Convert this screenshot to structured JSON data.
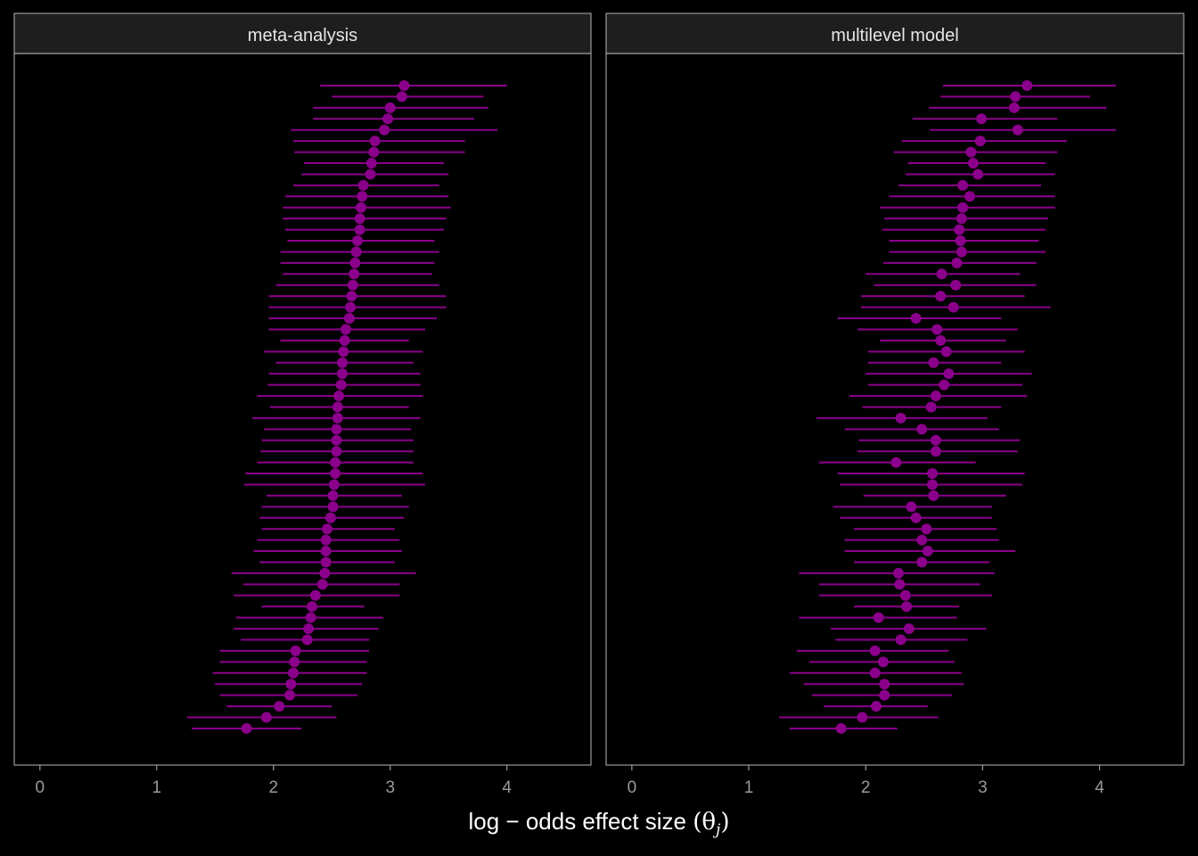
{
  "chart_data": {
    "type": "scatter",
    "subtype": "point-range (forest plot) faceted",
    "colors": {
      "background": "#000000",
      "panel_border": "#9a9a9a",
      "strip_fill": "#1e1e1e",
      "point": "#8b008b",
      "interval": "#8b008b",
      "tick_label": "#9a9a9a",
      "axis_title": "#ffffff"
    },
    "x_axis": {
      "label_prefix": "log − odds effect size ",
      "label_symbol": "(θ",
      "label_subscript": "j",
      "label_suffix": ")",
      "ticks": [
        "0",
        "1",
        "2",
        "3",
        "4"
      ],
      "tick_values": [
        0,
        1,
        2,
        3,
        4
      ],
      "xlim": [
        -0.22,
        4.72
      ]
    },
    "grid": false,
    "n_rows": 59,
    "panels": [
      {
        "title": "meta-analysis",
        "points": [
          {
            "est": 3.12,
            "lo": 2.4,
            "hi": 4.0
          },
          {
            "est": 3.1,
            "lo": 2.5,
            "hi": 3.8
          },
          {
            "est": 3.0,
            "lo": 2.34,
            "hi": 3.84
          },
          {
            "est": 2.98,
            "lo": 2.34,
            "hi": 3.72
          },
          {
            "est": 2.95,
            "lo": 2.15,
            "hi": 3.92
          },
          {
            "est": 2.87,
            "lo": 2.17,
            "hi": 3.64
          },
          {
            "est": 2.86,
            "lo": 2.18,
            "hi": 3.64
          },
          {
            "est": 2.84,
            "lo": 2.26,
            "hi": 3.46
          },
          {
            "est": 2.83,
            "lo": 2.24,
            "hi": 3.5
          },
          {
            "est": 2.77,
            "lo": 2.17,
            "hi": 3.42
          },
          {
            "est": 2.76,
            "lo": 2.1,
            "hi": 3.5
          },
          {
            "est": 2.75,
            "lo": 2.08,
            "hi": 3.52
          },
          {
            "est": 2.74,
            "lo": 2.08,
            "hi": 3.48
          },
          {
            "est": 2.74,
            "lo": 2.1,
            "hi": 3.46
          },
          {
            "est": 2.72,
            "lo": 2.12,
            "hi": 3.38
          },
          {
            "est": 2.71,
            "lo": 2.06,
            "hi": 3.42
          },
          {
            "est": 2.7,
            "lo": 2.06,
            "hi": 3.38
          },
          {
            "est": 2.69,
            "lo": 2.08,
            "hi": 3.36
          },
          {
            "est": 2.68,
            "lo": 2.02,
            "hi": 3.42
          },
          {
            "est": 2.67,
            "lo": 1.96,
            "hi": 3.48
          },
          {
            "est": 2.66,
            "lo": 1.96,
            "hi": 3.48
          },
          {
            "est": 2.65,
            "lo": 1.96,
            "hi": 3.4
          },
          {
            "est": 2.62,
            "lo": 1.96,
            "hi": 3.3
          },
          {
            "est": 2.61,
            "lo": 2.06,
            "hi": 3.16
          },
          {
            "est": 2.6,
            "lo": 1.92,
            "hi": 3.28
          },
          {
            "est": 2.59,
            "lo": 2.02,
            "hi": 3.2
          },
          {
            "est": 2.59,
            "lo": 1.96,
            "hi": 3.26
          },
          {
            "est": 2.58,
            "lo": 1.95,
            "hi": 3.26
          },
          {
            "est": 2.56,
            "lo": 1.86,
            "hi": 3.28
          },
          {
            "est": 2.55,
            "lo": 1.97,
            "hi": 3.16
          },
          {
            "est": 2.55,
            "lo": 1.82,
            "hi": 3.26
          },
          {
            "est": 2.54,
            "lo": 1.92,
            "hi": 3.18
          },
          {
            "est": 2.54,
            "lo": 1.9,
            "hi": 3.2
          },
          {
            "est": 2.54,
            "lo": 1.89,
            "hi": 3.2
          },
          {
            "est": 2.53,
            "lo": 1.86,
            "hi": 3.2
          },
          {
            "est": 2.53,
            "lo": 1.76,
            "hi": 3.28
          },
          {
            "est": 2.52,
            "lo": 1.75,
            "hi": 3.3
          },
          {
            "est": 2.51,
            "lo": 1.94,
            "hi": 3.1
          },
          {
            "est": 2.51,
            "lo": 1.9,
            "hi": 3.16
          },
          {
            "est": 2.49,
            "lo": 1.88,
            "hi": 3.12
          },
          {
            "est": 2.46,
            "lo": 1.9,
            "hi": 3.04
          },
          {
            "est": 2.45,
            "lo": 1.86,
            "hi": 3.08
          },
          {
            "est": 2.45,
            "lo": 1.83,
            "hi": 3.1
          },
          {
            "est": 2.45,
            "lo": 1.88,
            "hi": 3.04
          },
          {
            "est": 2.44,
            "lo": 1.64,
            "hi": 3.22
          },
          {
            "est": 2.42,
            "lo": 1.74,
            "hi": 3.08
          },
          {
            "est": 2.36,
            "lo": 1.66,
            "hi": 3.08
          },
          {
            "est": 2.33,
            "lo": 1.9,
            "hi": 2.78
          },
          {
            "est": 2.32,
            "lo": 1.68,
            "hi": 2.94
          },
          {
            "est": 2.3,
            "lo": 1.66,
            "hi": 2.9
          },
          {
            "est": 2.29,
            "lo": 1.72,
            "hi": 2.82
          },
          {
            "est": 2.19,
            "lo": 1.54,
            "hi": 2.82
          },
          {
            "est": 2.18,
            "lo": 1.54,
            "hi": 2.8
          },
          {
            "est": 2.17,
            "lo": 1.48,
            "hi": 2.8
          },
          {
            "est": 2.15,
            "lo": 1.5,
            "hi": 2.76
          },
          {
            "est": 2.14,
            "lo": 1.54,
            "hi": 2.72
          },
          {
            "est": 2.05,
            "lo": 1.6,
            "hi": 2.5
          },
          {
            "est": 1.94,
            "lo": 1.26,
            "hi": 2.54
          },
          {
            "est": 1.77,
            "lo": 1.3,
            "hi": 2.24
          }
        ]
      },
      {
        "title": "multilevel model",
        "points": [
          {
            "est": 3.38,
            "lo": 2.66,
            "hi": 4.14
          },
          {
            "est": 3.28,
            "lo": 2.64,
            "hi": 3.92
          },
          {
            "est": 3.27,
            "lo": 2.54,
            "hi": 4.06
          },
          {
            "est": 2.99,
            "lo": 2.4,
            "hi": 3.64
          },
          {
            "est": 3.3,
            "lo": 2.55,
            "hi": 4.14
          },
          {
            "est": 2.98,
            "lo": 2.31,
            "hi": 3.72
          },
          {
            "est": 2.9,
            "lo": 2.24,
            "hi": 3.64
          },
          {
            "est": 2.92,
            "lo": 2.36,
            "hi": 3.54
          },
          {
            "est": 2.96,
            "lo": 2.34,
            "hi": 3.62
          },
          {
            "est": 2.83,
            "lo": 2.28,
            "hi": 3.5
          },
          {
            "est": 2.89,
            "lo": 2.2,
            "hi": 3.62
          },
          {
            "est": 2.83,
            "lo": 2.12,
            "hi": 3.62
          },
          {
            "est": 2.82,
            "lo": 2.16,
            "hi": 3.56
          },
          {
            "est": 2.8,
            "lo": 2.14,
            "hi": 3.54
          },
          {
            "est": 2.81,
            "lo": 2.2,
            "hi": 3.48
          },
          {
            "est": 2.82,
            "lo": 2.2,
            "hi": 3.54
          },
          {
            "est": 2.78,
            "lo": 2.15,
            "hi": 3.46
          },
          {
            "est": 2.65,
            "lo": 2.0,
            "hi": 3.32
          },
          {
            "est": 2.77,
            "lo": 2.07,
            "hi": 3.46
          },
          {
            "est": 2.64,
            "lo": 1.96,
            "hi": 3.36
          },
          {
            "est": 2.75,
            "lo": 1.96,
            "hi": 3.58
          },
          {
            "est": 2.43,
            "lo": 1.76,
            "hi": 3.16
          },
          {
            "est": 2.61,
            "lo": 1.93,
            "hi": 3.3
          },
          {
            "est": 2.64,
            "lo": 2.12,
            "hi": 3.2
          },
          {
            "est": 2.69,
            "lo": 2.02,
            "hi": 3.36
          },
          {
            "est": 2.58,
            "lo": 2.02,
            "hi": 3.16
          },
          {
            "est": 2.71,
            "lo": 2.0,
            "hi": 3.42
          },
          {
            "est": 2.67,
            "lo": 2.02,
            "hi": 3.34
          },
          {
            "est": 2.6,
            "lo": 1.86,
            "hi": 3.38
          },
          {
            "est": 2.56,
            "lo": 1.97,
            "hi": 3.16
          },
          {
            "est": 2.3,
            "lo": 1.58,
            "hi": 3.04
          },
          {
            "est": 2.48,
            "lo": 1.82,
            "hi": 3.14
          },
          {
            "est": 2.6,
            "lo": 1.94,
            "hi": 3.32
          },
          {
            "est": 2.6,
            "lo": 1.93,
            "hi": 3.3
          },
          {
            "est": 2.26,
            "lo": 1.6,
            "hi": 2.94
          },
          {
            "est": 2.57,
            "lo": 1.76,
            "hi": 3.36
          },
          {
            "est": 2.57,
            "lo": 1.78,
            "hi": 3.34
          },
          {
            "est": 2.58,
            "lo": 1.98,
            "hi": 3.2
          },
          {
            "est": 2.39,
            "lo": 1.72,
            "hi": 3.08
          },
          {
            "est": 2.43,
            "lo": 1.78,
            "hi": 3.08
          },
          {
            "est": 2.52,
            "lo": 1.9,
            "hi": 3.12
          },
          {
            "est": 2.48,
            "lo": 1.82,
            "hi": 3.14
          },
          {
            "est": 2.53,
            "lo": 1.82,
            "hi": 3.28
          },
          {
            "est": 2.48,
            "lo": 1.9,
            "hi": 3.06
          },
          {
            "est": 2.28,
            "lo": 1.43,
            "hi": 3.1
          },
          {
            "est": 2.29,
            "lo": 1.6,
            "hi": 2.98
          },
          {
            "est": 2.34,
            "lo": 1.6,
            "hi": 3.08
          },
          {
            "est": 2.35,
            "lo": 1.9,
            "hi": 2.8
          },
          {
            "est": 2.11,
            "lo": 1.43,
            "hi": 2.78
          },
          {
            "est": 2.37,
            "lo": 1.7,
            "hi": 3.03
          },
          {
            "est": 2.3,
            "lo": 1.74,
            "hi": 2.87
          },
          {
            "est": 2.08,
            "lo": 1.41,
            "hi": 2.71
          },
          {
            "est": 2.15,
            "lo": 1.52,
            "hi": 2.76
          },
          {
            "est": 2.08,
            "lo": 1.35,
            "hi": 2.82
          },
          {
            "est": 2.16,
            "lo": 1.47,
            "hi": 2.84
          },
          {
            "est": 2.16,
            "lo": 1.54,
            "hi": 2.74
          },
          {
            "est": 2.09,
            "lo": 1.64,
            "hi": 2.53
          },
          {
            "est": 1.97,
            "lo": 1.26,
            "hi": 2.62
          },
          {
            "est": 1.79,
            "lo": 1.35,
            "hi": 2.27
          }
        ]
      }
    ]
  }
}
